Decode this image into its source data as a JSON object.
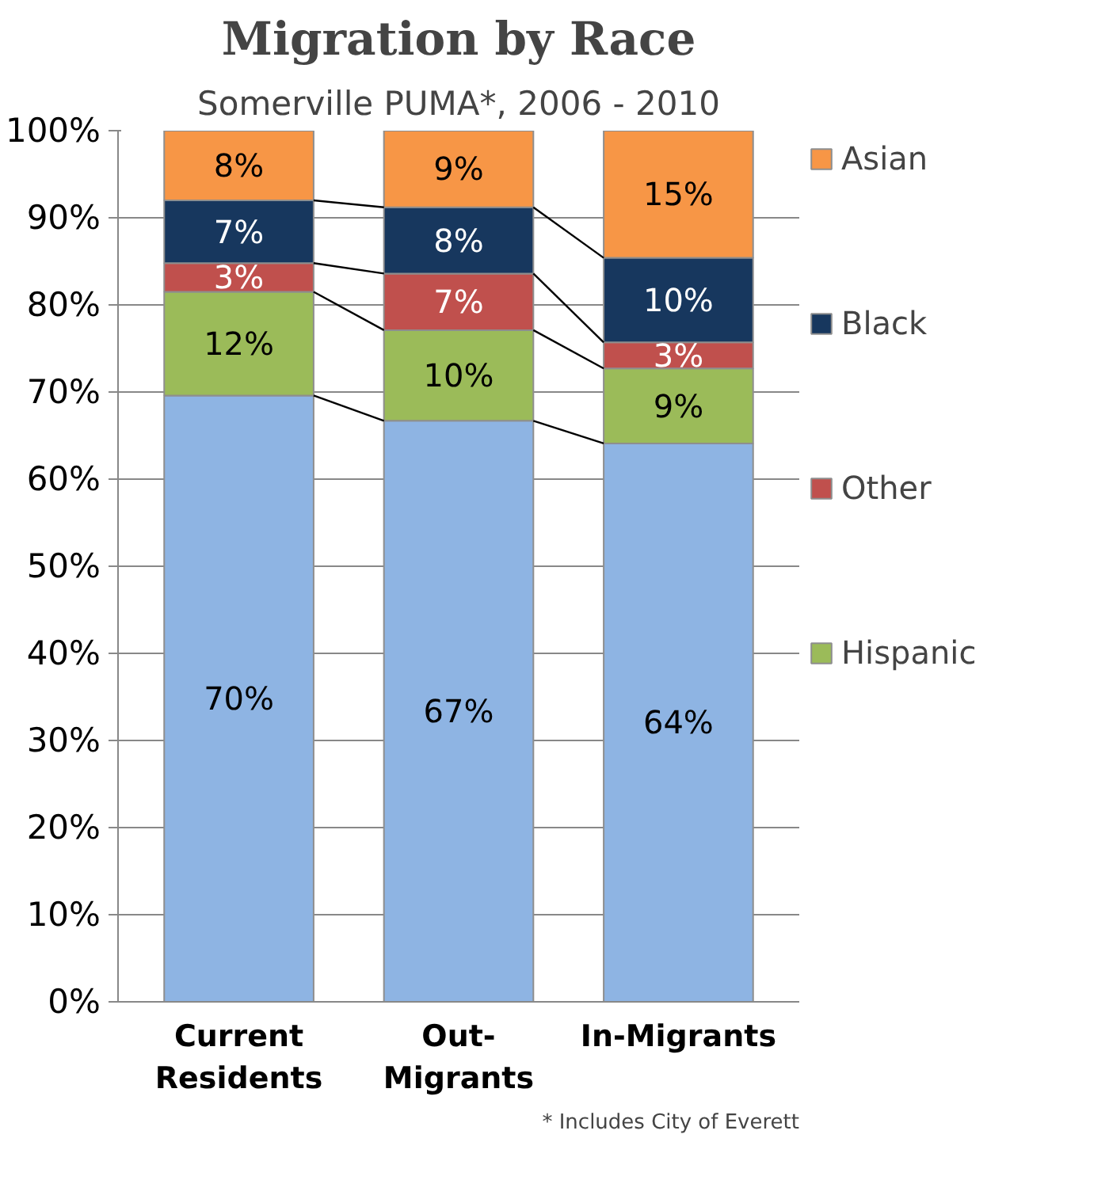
{
  "chart_data": {
    "type": "bar",
    "stacked": true,
    "title": "Migration by Race",
    "subtitle": "Somerville PUMA*, 2006 - 2010",
    "categories": [
      "Current\nResidents",
      "Out-\nMigrants",
      "In-Migrants"
    ],
    "series": [
      {
        "color": "#8eb4e3",
        "values": [
          69.6,
          66.7,
          64.1
        ],
        "value_labels": [
          "70%",
          "67%",
          "64%"
        ]
      },
      {
        "name": "Hispanic",
        "color": "#9bbb59",
        "values": [
          11.9,
          10.4,
          8.6
        ],
        "value_labels": [
          "12%",
          "10%",
          "9%"
        ]
      },
      {
        "name": "Other",
        "color": "#c0504d",
        "values": [
          3.3,
          6.5,
          3.0
        ],
        "value_labels": [
          "3%",
          "7%",
          "3%"
        ]
      },
      {
        "name": "Black",
        "color": "#17375e",
        "values": [
          7.2,
          7.6,
          9.7
        ],
        "value_labels": [
          "7%",
          "8%",
          "10%"
        ]
      },
      {
        "name": "Asian",
        "color": "#f79646",
        "values": [
          8.0,
          8.8,
          14.6
        ],
        "value_labels": [
          "8%",
          "9%",
          "15%"
        ]
      }
    ],
    "ylim": [
      0,
      100
    ],
    "yticks": [
      {
        "value": 0,
        "label": "0%"
      },
      {
        "value": 10,
        "label": "10%"
      },
      {
        "value": 20,
        "label": "20%"
      },
      {
        "value": 30,
        "label": "30%"
      },
      {
        "value": 40,
        "label": "40%"
      },
      {
        "value": 50,
        "label": "50%"
      },
      {
        "value": 60,
        "label": "60%"
      },
      {
        "value": 70,
        "label": "70%"
      },
      {
        "value": 80,
        "label": "80%"
      },
      {
        "value": 90,
        "label": "90%"
      },
      {
        "value": 100,
        "label": "100%"
      }
    ],
    "grid": "y",
    "legend": "right",
    "annotations": [
      "* Includes City of Everett"
    ]
  }
}
